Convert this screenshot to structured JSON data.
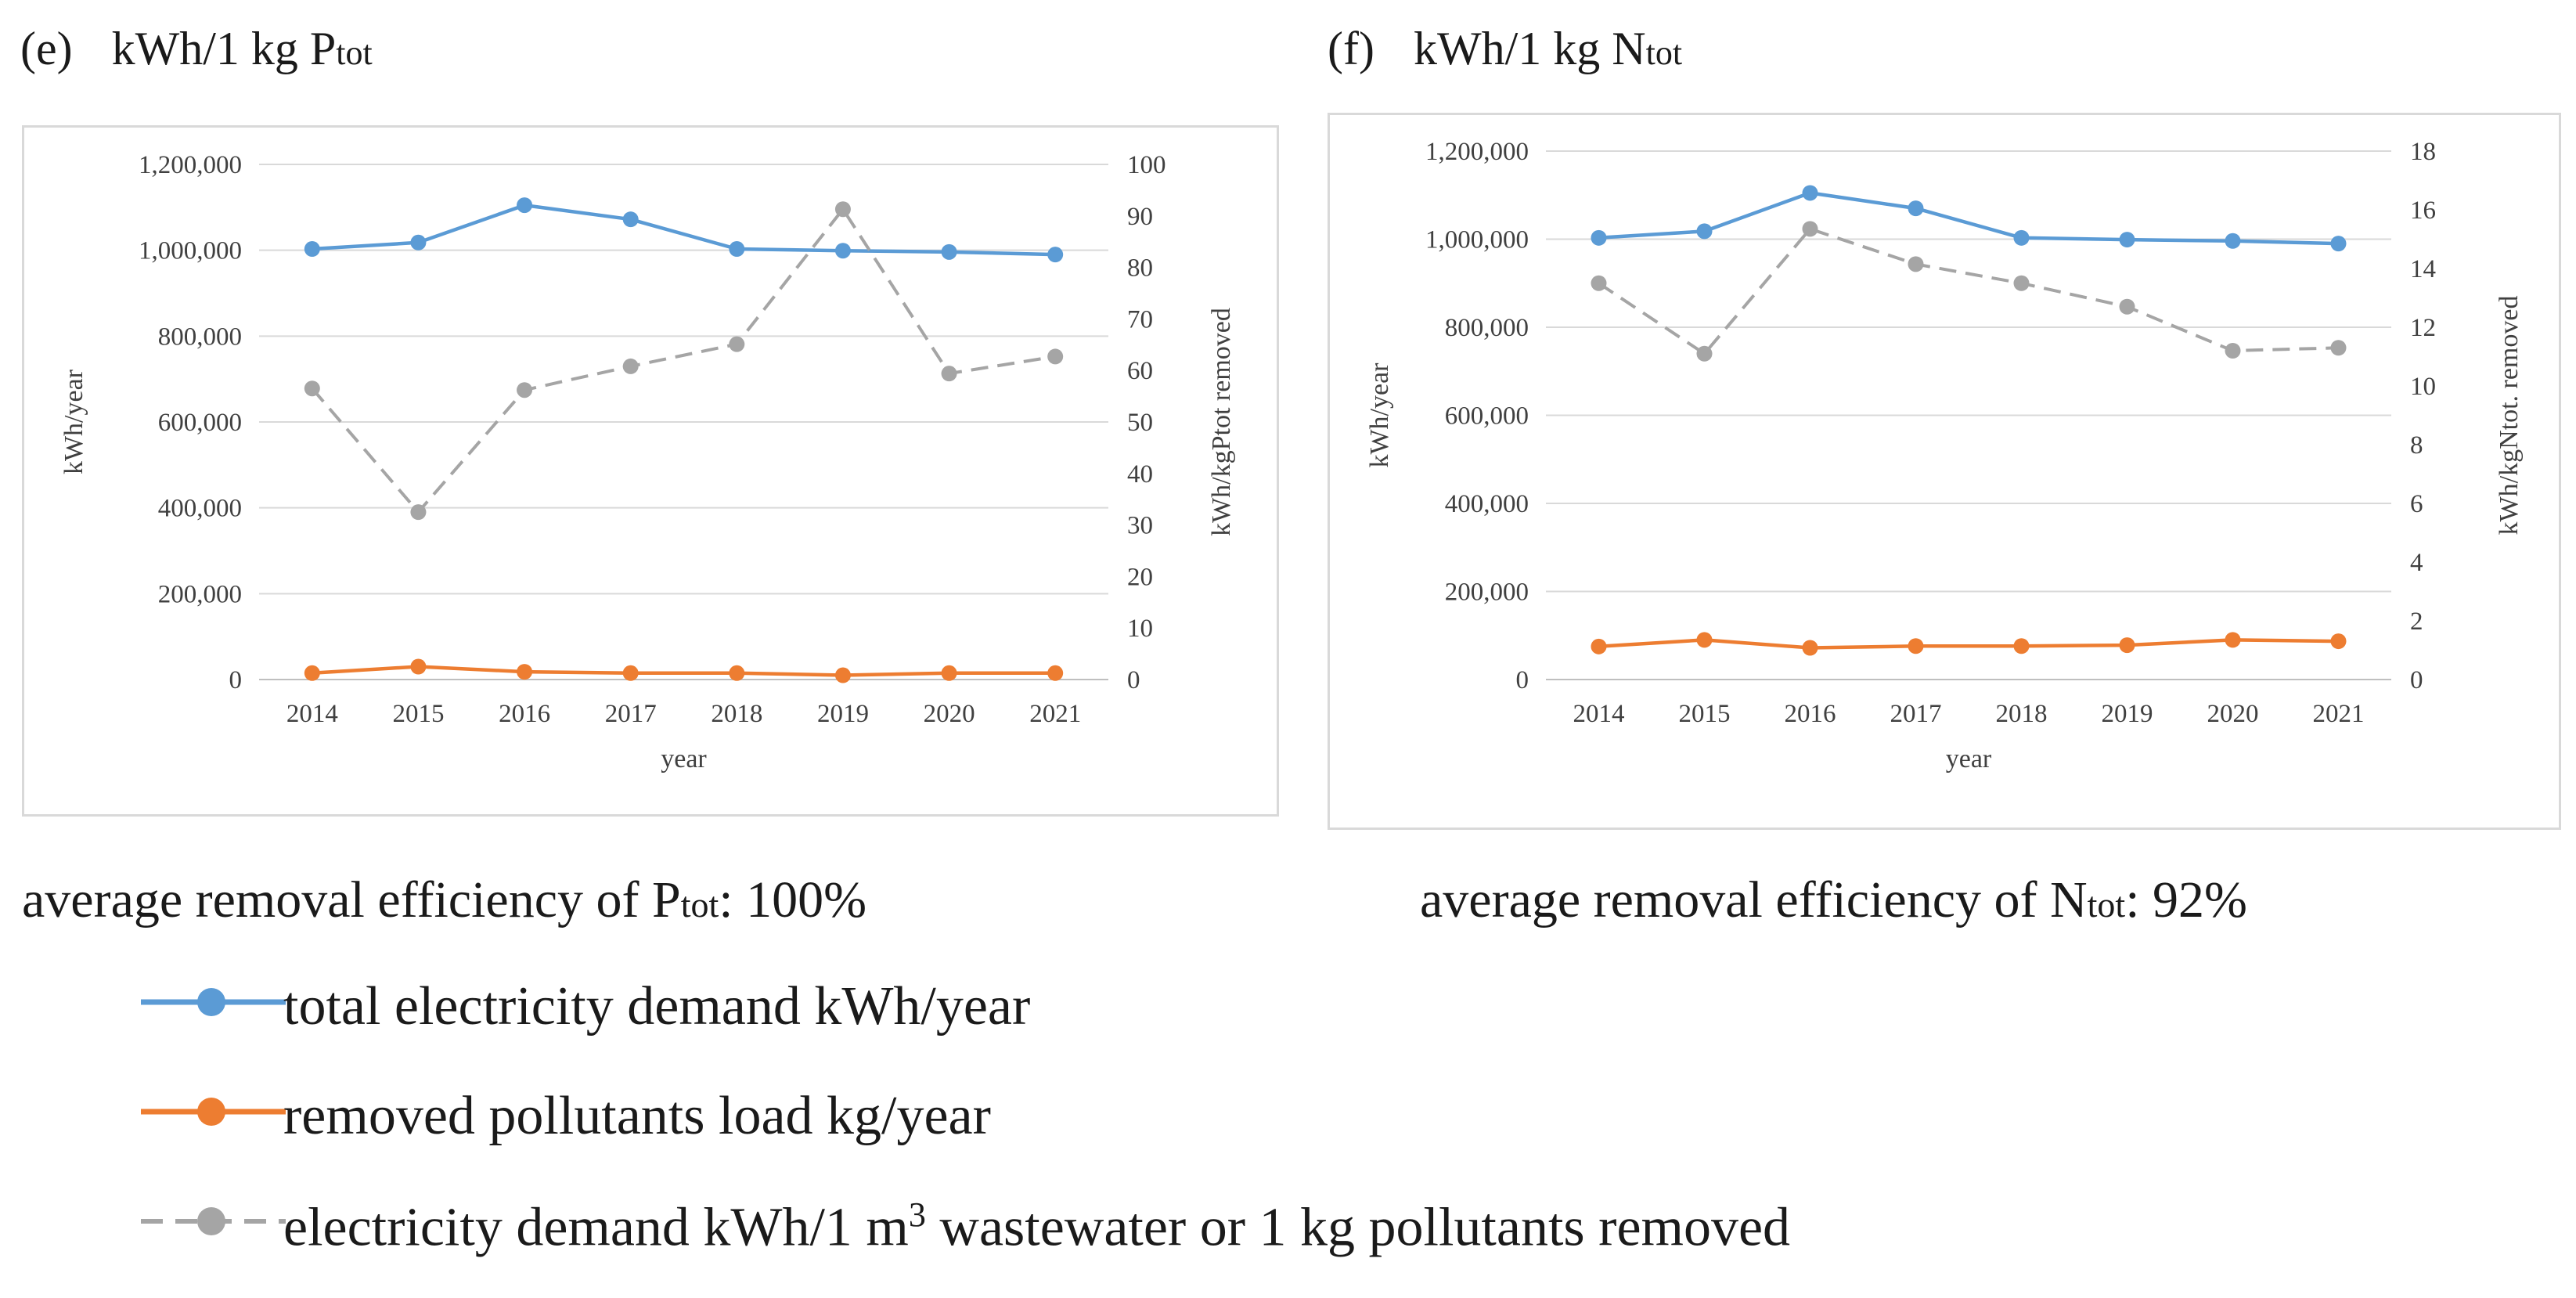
{
  "panels": [
    {
      "letter": "(e)",
      "title_main": "kWh/1 kg P",
      "title_sub": "tot",
      "caption_main": "average removal efficiency of P",
      "caption_sub": "tot",
      "caption_value": ": 100%"
    },
    {
      "letter": "(f)",
      "title_main": "kWh/1 kg N",
      "title_sub": "tot",
      "caption_main": "average removal efficiency of N",
      "caption_sub": "tot",
      "caption_value": ": 92%"
    }
  ],
  "legend": {
    "items": [
      {
        "label": "total electricity demand kWh/year"
      },
      {
        "label": "removed pollutants load kg/year"
      },
      {
        "label_before": "electricity demand kWh/1 m",
        "label_sup": "3",
        "label_after": " wastewater or 1 kg pollutants removed"
      }
    ]
  },
  "colors": {
    "demand": "#5b9bd5",
    "load": "#ed7d31",
    "per_unit": "#a5a5a5",
    "grid": "#d9d9d9",
    "axis": "#bfbfbf",
    "text": "#404040"
  },
  "chart_data": [
    {
      "type": "line",
      "title": "kWh/1 kg Ptot",
      "xlabel": "year",
      "ylabel": "kWh/year",
      "y2label": "kWh/kgPtot removed",
      "categories": [
        "2014",
        "2015",
        "2016",
        "2017",
        "2018",
        "2019",
        "2020",
        "2021"
      ],
      "ylim": [
        0,
        1200000
      ],
      "yticks": [
        0,
        200000,
        400000,
        600000,
        800000,
        1000000,
        1200000
      ],
      "ytick_labels": [
        "0",
        "200,000",
        "400,000",
        "600,000",
        "800,000",
        "1,000,000",
        "1,200,000"
      ],
      "y2lim": [
        0,
        100
      ],
      "y2ticks": [
        0,
        10,
        20,
        30,
        40,
        50,
        60,
        70,
        80,
        90,
        100
      ],
      "y2tick_labels": [
        "0",
        "10",
        "20",
        "30",
        "40",
        "50",
        "60",
        "70",
        "80",
        "90",
        "100"
      ],
      "grid": true,
      "series": [
        {
          "name": "total electricity demand kWh/year",
          "axis": "left",
          "style": "solid",
          "color": "#5b9bd5",
          "values": [
            1003000,
            1018000,
            1105000,
            1072000,
            1003000,
            999000,
            996000,
            990000
          ]
        },
        {
          "name": "removed pollutants load kg/year",
          "axis": "left",
          "style": "solid",
          "color": "#ed7d31",
          "values": [
            15000,
            30000,
            18000,
            15000,
            15000,
            10000,
            15000,
            15000
          ]
        },
        {
          "name": "electricity demand kWh/1 m3 wastewater or 1 kg pollutants removed",
          "axis": "right",
          "style": "dashed",
          "color": "#a5a5a5",
          "values": [
            56.5,
            32.5,
            56.2,
            60.8,
            65.1,
            91.3,
            59.4,
            62.7
          ]
        }
      ]
    },
    {
      "type": "line",
      "title": "kWh/1 kg Ntot",
      "xlabel": "year",
      "ylabel": "kWh/year",
      "y2label": "kWh/kgNtot. removed",
      "categories": [
        "2014",
        "2015",
        "2016",
        "2017",
        "2018",
        "2019",
        "2020",
        "2021"
      ],
      "ylim": [
        0,
        1200000
      ],
      "yticks": [
        0,
        200000,
        400000,
        600000,
        800000,
        1000000,
        1200000
      ],
      "ytick_labels": [
        "0",
        "200,000",
        "400,000",
        "600,000",
        "800,000",
        "1,000,000",
        "1,200,000"
      ],
      "y2lim": [
        0,
        18
      ],
      "y2ticks": [
        0,
        2,
        4,
        6,
        8,
        10,
        12,
        14,
        16,
        18
      ],
      "y2tick_labels": [
        "0",
        "2",
        "4",
        "6",
        "8",
        "10",
        "12",
        "14",
        "16",
        "18"
      ],
      "grid": true,
      "series": [
        {
          "name": "total electricity demand kWh/year",
          "axis": "left",
          "style": "solid",
          "color": "#5b9bd5",
          "values": [
            1003000,
            1018000,
            1105000,
            1070000,
            1003000,
            999000,
            996000,
            990000
          ]
        },
        {
          "name": "removed pollutants load kg/year",
          "axis": "left",
          "style": "solid",
          "color": "#ed7d31",
          "values": [
            75000,
            90000,
            72000,
            76000,
            76000,
            78000,
            90000,
            87000
          ]
        },
        {
          "name": "electricity demand kWh/1 m3 wastewater or 1 kg pollutants removed",
          "axis": "right",
          "style": "dashed",
          "color": "#a5a5a5",
          "values": [
            13.5,
            11.1,
            15.35,
            14.15,
            13.5,
            12.7,
            11.2,
            11.3
          ]
        }
      ]
    }
  ]
}
